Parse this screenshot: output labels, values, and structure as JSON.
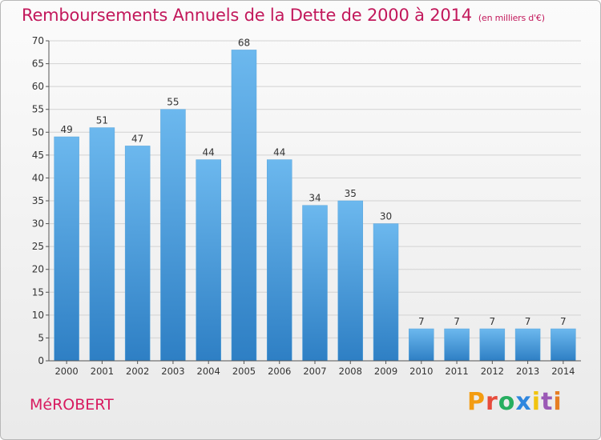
{
  "header": {
    "title": "Remboursements Annuels de la Dette de 2000 à 2014",
    "unit": "(en milliers d'€)"
  },
  "footer": {
    "commune": "MéROBERT",
    "brand": "Proxiti"
  },
  "colors": {
    "title": "#c2185b",
    "bar_top": "#6cb8ee",
    "bar_bottom": "#2e7fc4",
    "grid": "#d2d2d2"
  },
  "chart_data": {
    "type": "bar",
    "title": "Remboursements Annuels de la Dette de 2000 à 2014",
    "subtitle": "(en milliers d'€)",
    "xlabel": "",
    "ylabel": "",
    "categories": [
      "2000",
      "2001",
      "2002",
      "2003",
      "2004",
      "2005",
      "2006",
      "2007",
      "2008",
      "2009",
      "2010",
      "2011",
      "2012",
      "2013",
      "2014"
    ],
    "values": [
      49,
      51,
      47,
      55,
      44,
      68,
      44,
      34,
      35,
      30,
      7,
      7,
      7,
      7,
      7
    ],
    "ylim": [
      0,
      70
    ],
    "yticks": [
      0,
      5,
      10,
      15,
      20,
      25,
      30,
      35,
      40,
      45,
      50,
      55,
      60,
      65,
      70
    ],
    "grid": true,
    "data_labels": true
  }
}
